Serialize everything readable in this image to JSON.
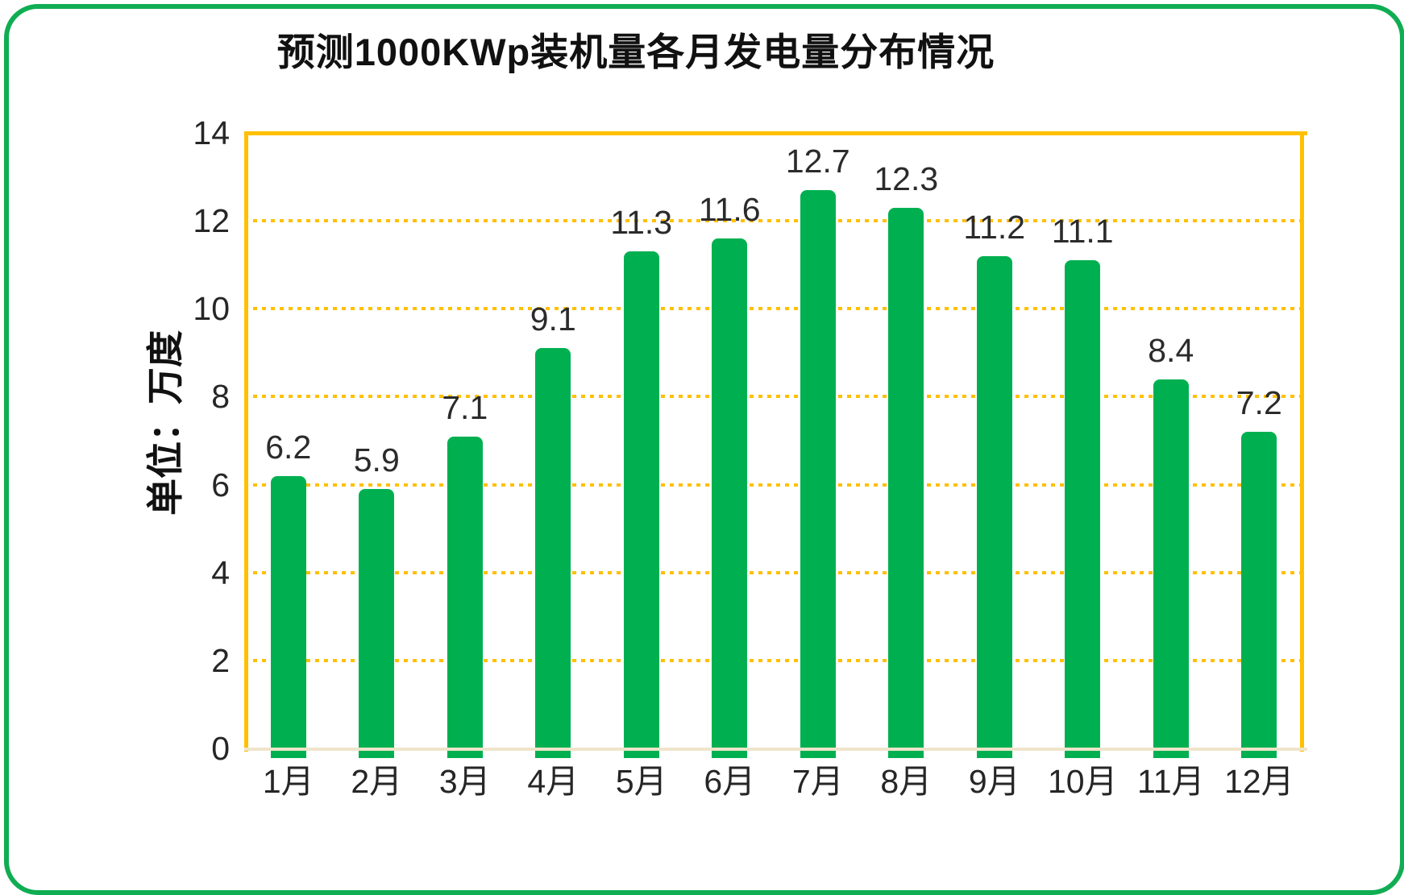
{
  "chart_data": {
    "type": "bar",
    "title": "预测1000KWp装机量各月发电量分布情况",
    "ylabel": "单位：万度",
    "xlabel": "",
    "categories": [
      "1月",
      "2月",
      "3月",
      "4月",
      "5月",
      "6月",
      "7月",
      "8月",
      "9月",
      "10月",
      "11月",
      "12月"
    ],
    "values": [
      6.2,
      5.9,
      7.1,
      9.1,
      11.3,
      11.6,
      12.7,
      12.3,
      11.2,
      11.1,
      8.4,
      7.2
    ],
    "value_labels": [
      "6.2",
      "5.9",
      "7.1",
      "9.1",
      "11.3",
      "11.6",
      "12.7",
      "12.3",
      "11.2",
      "11.1",
      "8.4",
      "7.2"
    ],
    "ylim": [
      0,
      14
    ],
    "yticks": [
      0,
      2,
      4,
      6,
      8,
      10,
      12,
      14
    ],
    "grid": "horizontal dotted",
    "legend": "none",
    "colors": {
      "bar": "#00B050",
      "gridline": "#FFC000",
      "axis_border": "#FFC000",
      "baseline": "#EFE5CB",
      "frame_border": "#10AD53",
      "text": "#1A1A1A"
    }
  }
}
